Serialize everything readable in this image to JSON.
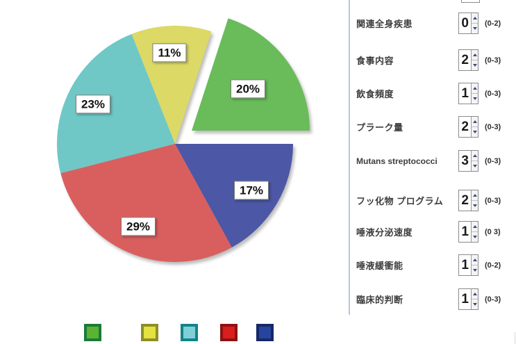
{
  "chart_data": {
    "type": "pie",
    "title": "",
    "start_angle_deg": 0,
    "direction": "counterclockwise",
    "grid": false,
    "legend_position": "bottom",
    "slices": [
      {
        "name": "green",
        "label": "20%",
        "value": 20,
        "color": "#69bc59",
        "exploded": true
      },
      {
        "name": "yellow",
        "label": "11%",
        "value": 11,
        "color": "#dcd966",
        "exploded": false
      },
      {
        "name": "teal",
        "label": "23%",
        "value": 23,
        "color": "#6fc8c6",
        "exploded": false
      },
      {
        "name": "red",
        "label": "29%",
        "value": 29,
        "color": "#d95f5f",
        "exploded": false
      },
      {
        "name": "blue",
        "label": "17%",
        "value": 17,
        "color": "#4c57a5",
        "exploded": false
      }
    ],
    "legend": [
      {
        "name": "green",
        "fill": "#5cb332",
        "border": "#1c7a3c"
      },
      {
        "name": "yellow",
        "fill": "#e3e23e",
        "border": "#8e8e28"
      },
      {
        "name": "teal",
        "fill": "#7fd0d6",
        "border": "#12838a"
      },
      {
        "name": "red",
        "fill": "#d91e1e",
        "border": "#8e1212"
      },
      {
        "name": "blue",
        "fill": "#27459c",
        "border": "#172865"
      }
    ]
  },
  "form": {
    "rows": [
      {
        "label": "関連全身疾患",
        "value": "0",
        "range": "(0-2)",
        "latin": false
      },
      {
        "label": "食事内容",
        "value": "2",
        "range": "(0-3)",
        "latin": false
      },
      {
        "label": "飲食頻度",
        "value": "1",
        "range": "(0-3)",
        "latin": false
      },
      {
        "label": "プラーク量",
        "value": "2",
        "range": "(0-3)",
        "latin": false
      },
      {
        "label": "Mutans streptococci",
        "value": "3",
        "range": "(0-3)",
        "latin": true
      },
      {
        "label": "フッ化物 プログラム",
        "value": "2",
        "range": "(0-3)",
        "latin": false
      },
      {
        "label": "唾液分泌速度",
        "value": "1",
        "range": "(0 3)",
        "latin": false
      },
      {
        "label": "唾液緩衝能",
        "value": "1",
        "range": "(0-2)",
        "latin": false
      },
      {
        "label": "臨床的判断",
        "value": "1",
        "range": "(0-3)",
        "latin": false
      }
    ]
  }
}
